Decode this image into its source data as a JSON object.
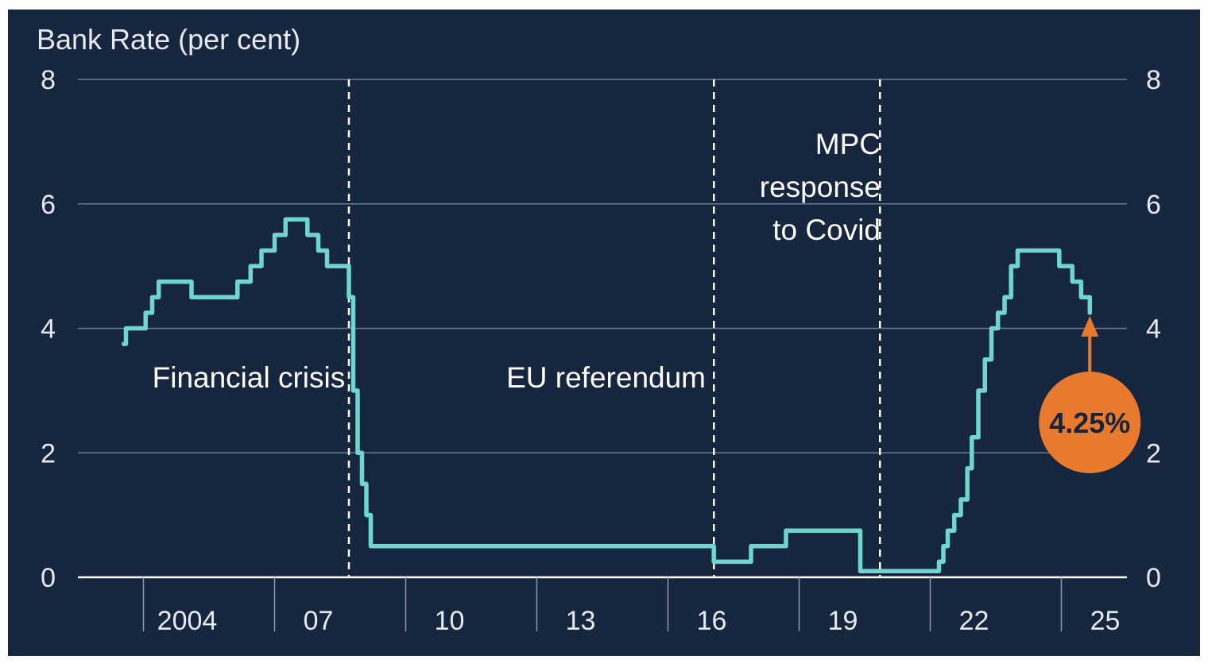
{
  "chart_data": {
    "type": "line",
    "title": "",
    "ylabel": "Bank Rate (per cent)",
    "xlabel": "",
    "ylim": [
      0,
      8
    ],
    "yticks": [
      0,
      2,
      4,
      6,
      8
    ],
    "xlim": [
      2002,
      2026
    ],
    "xticks": [
      {
        "label": "2004",
        "value": 2004
      },
      {
        "label": "07",
        "value": 2007
      },
      {
        "label": "10",
        "value": 2010
      },
      {
        "label": "13",
        "value": 2013
      },
      {
        "label": "16",
        "value": 2016
      },
      {
        "label": "19",
        "value": 2019
      },
      {
        "label": "22",
        "value": 2022
      },
      {
        "label": "25",
        "value": 2025
      }
    ],
    "grid": true,
    "line_color": "#6fd6cd",
    "background": "#17263f",
    "series": [
      {
        "name": "",
        "step": true,
        "points": [
          [
            2003.05,
            3.75
          ],
          [
            2003.1,
            4.0
          ],
          [
            2003.35,
            4.0
          ],
          [
            2003.55,
            4.25
          ],
          [
            2003.7,
            4.5
          ],
          [
            2003.85,
            4.75
          ],
          [
            2004.55,
            4.75
          ],
          [
            2004.6,
            4.5
          ],
          [
            2005.6,
            4.5
          ],
          [
            2005.65,
            4.75
          ],
          [
            2005.95,
            5.0
          ],
          [
            2006.2,
            5.25
          ],
          [
            2006.5,
            5.5
          ],
          [
            2006.75,
            5.75
          ],
          [
            2007.25,
            5.5
          ],
          [
            2007.5,
            5.25
          ],
          [
            2007.7,
            5.0
          ],
          [
            2008.2,
            4.5
          ],
          [
            2008.3,
            3.0
          ],
          [
            2008.4,
            2.0
          ],
          [
            2008.5,
            1.5
          ],
          [
            2008.6,
            1.0
          ],
          [
            2008.7,
            0.5
          ],
          [
            2016.55,
            0.25
          ],
          [
            2017.4,
            0.5
          ],
          [
            2018.2,
            0.75
          ],
          [
            2019.9,
            0.1
          ],
          [
            2021.55,
            0.1
          ],
          [
            2021.7,
            0.25
          ],
          [
            2021.8,
            0.5
          ],
          [
            2021.9,
            0.75
          ],
          [
            2022.05,
            1.0
          ],
          [
            2022.2,
            1.25
          ],
          [
            2022.35,
            1.75
          ],
          [
            2022.45,
            2.25
          ],
          [
            2022.6,
            3.0
          ],
          [
            2022.75,
            3.5
          ],
          [
            2022.9,
            4.0
          ],
          [
            2023.05,
            4.25
          ],
          [
            2023.2,
            4.5
          ],
          [
            2023.35,
            5.0
          ],
          [
            2023.5,
            5.25
          ],
          [
            2024.35,
            5.25
          ],
          [
            2024.45,
            5.0
          ],
          [
            2024.65,
            5.0
          ],
          [
            2024.75,
            4.75
          ],
          [
            2024.95,
            4.5
          ],
          [
            2025.15,
            4.25
          ]
        ]
      }
    ],
    "events": [
      {
        "label_lines": [
          "Financial crisis"
        ],
        "x": 2008.15,
        "y": 3.05,
        "anchor": "end"
      },
      {
        "label_lines": [
          "EU referendum"
        ],
        "x": 2016.4,
        "y": 3.05,
        "anchor": "end"
      },
      {
        "label_lines": [
          "MPC",
          "response",
          "to Covid"
        ],
        "x": 2020.4,
        "y": 6.8,
        "anchor": "end"
      }
    ],
    "highlight": {
      "label": "4.25%",
      "x": 2025.15,
      "y": 4.25,
      "color": "#e87a2e"
    }
  }
}
